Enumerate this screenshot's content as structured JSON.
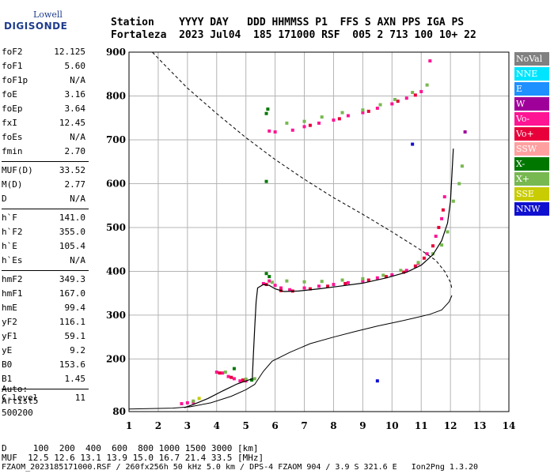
{
  "logo": {
    "top": "Lowell",
    "main": "DIGISONDE"
  },
  "header": {
    "line1": "Station    YYYY DAY   DDD HHMMSS P1  FFS S AXN PPS IGA PS",
    "line2": "Fortaleza  2023 Jul04  185 171000 RSF  005 2 713 100 10+ 22"
  },
  "params": [
    {
      "label": "foF2",
      "value": "12.125"
    },
    {
      "label": "foF1",
      "value": "5.60"
    },
    {
      "label": "foF1p",
      "value": "N/A"
    },
    {
      "label": "foE",
      "value": "3.16"
    },
    {
      "label": "foEp",
      "value": "3.64"
    },
    {
      "label": "fxI",
      "value": "12.45"
    },
    {
      "label": "foEs",
      "value": "N/A"
    },
    {
      "label": "fmin",
      "value": "2.70"
    },
    {
      "label": "MUF(D)",
      "value": "33.52"
    },
    {
      "label": "M(D)",
      "value": "2.77"
    },
    {
      "label": "D",
      "value": "N/A"
    },
    {
      "label": "h`F",
      "value": "141.0"
    },
    {
      "label": "h`F2",
      "value": "355.0"
    },
    {
      "label": "h`E",
      "value": "105.4"
    },
    {
      "label": "h`Es",
      "value": "N/A"
    },
    {
      "label": "hmF2",
      "value": "349.3"
    },
    {
      "label": "hmF1",
      "value": "167.0"
    },
    {
      "label": "hmE",
      "value": "99.4"
    },
    {
      "label": "yF2",
      "value": "116.1"
    },
    {
      "label": "yF1",
      "value": "59.1"
    },
    {
      "label": "yE",
      "value": "9.2"
    },
    {
      "label": "B0",
      "value": "153.6"
    },
    {
      "label": "B1",
      "value": "1.45"
    },
    {
      "label": "C-level",
      "value": "11"
    }
  ],
  "auto": [
    "Auto:",
    "Artist5",
    "500200"
  ],
  "legend": [
    {
      "label": "NoVal",
      "color": "#808080"
    },
    {
      "label": "NNE",
      "color": "#00e5ff"
    },
    {
      "label": "E",
      "color": "#1e90ff"
    },
    {
      "label": "W",
      "color": "#a0009a"
    },
    {
      "label": "Vo-",
      "color": "#ff1493"
    },
    {
      "label": "Vo+",
      "color": "#e8003a"
    },
    {
      "label": "SSW",
      "color": "#ffa0a0"
    },
    {
      "label": "X-",
      "color": "#007800"
    },
    {
      "label": "X+",
      "color": "#78b850"
    },
    {
      "label": "SSE",
      "color": "#c8cc00"
    },
    {
      "label": "NNW",
      "color": "#1010d0"
    }
  ],
  "footer": {
    "line1": "D     100  200  400  600  800 1000 1500 3000 [km]",
    "line2": "MUF  12.5 12.6 13.1 13.9 15.0 16.7 21.4 33.5 [MHz]",
    "line3": "FZAOM_2023185171000.RSF / 260fx256h 50 kHz 5.0 km / DPS-4 FZAOM 904 / 3.9 S 321.6 E   Ion2Png 1.3.20"
  },
  "chart_data": {
    "type": "scatter",
    "xlim": [
      1,
      14
    ],
    "ylim": [
      80,
      900
    ],
    "x_ticks": [
      1,
      2,
      3,
      4,
      5,
      6,
      7,
      8,
      9,
      10,
      11,
      12,
      13,
      14
    ],
    "y_ticks": [
      80,
      200,
      300,
      400,
      500,
      600,
      700,
      800,
      900
    ],
    "grid": true,
    "profile_curve": [
      [
        1.0,
        86
      ],
      [
        2.5,
        88
      ],
      [
        3.1,
        91
      ],
      [
        3.8,
        100
      ],
      [
        4.5,
        115
      ],
      [
        5.0,
        130
      ],
      [
        5.3,
        142
      ],
      [
        5.6,
        172
      ],
      [
        5.9,
        195
      ],
      [
        6.5,
        215
      ],
      [
        7.2,
        235
      ],
      [
        8.0,
        250
      ],
      [
        8.7,
        262
      ],
      [
        9.5,
        275
      ],
      [
        10.2,
        285
      ],
      [
        10.8,
        294
      ],
      [
        11.3,
        302
      ],
      [
        11.7,
        312
      ],
      [
        11.95,
        330
      ],
      [
        12.05,
        345
      ]
    ],
    "trace_curve": [
      [
        2.9,
        89
      ],
      [
        3.2,
        96
      ],
      [
        3.7,
        110
      ],
      [
        4.2,
        127
      ],
      [
        4.7,
        143
      ],
      [
        5.0,
        150
      ],
      [
        5.22,
        155
      ],
      [
        5.25,
        200
      ],
      [
        5.3,
        270
      ],
      [
        5.35,
        330
      ],
      [
        5.4,
        362
      ],
      [
        5.6,
        370
      ],
      [
        5.8,
        368
      ],
      [
        6.0,
        360
      ],
      [
        6.3,
        354
      ],
      [
        6.8,
        355
      ],
      [
        7.5,
        360
      ],
      [
        8.2,
        366
      ],
      [
        9.0,
        373
      ],
      [
        9.8,
        385
      ],
      [
        10.5,
        398
      ],
      [
        11.0,
        414
      ],
      [
        11.4,
        438
      ],
      [
        11.7,
        470
      ],
      [
        11.9,
        510
      ],
      [
        12.0,
        560
      ],
      [
        12.05,
        620
      ],
      [
        12.1,
        680
      ]
    ],
    "model_curve": [
      [
        1.8,
        900
      ],
      [
        2.2,
        872
      ],
      [
        3.0,
        818
      ],
      [
        4.0,
        760
      ],
      [
        5.0,
        705
      ],
      [
        6.0,
        655
      ],
      [
        7.0,
        610
      ],
      [
        8.0,
        568
      ],
      [
        9.0,
        530
      ],
      [
        10.0,
        490
      ],
      [
        11.0,
        448
      ],
      [
        11.5,
        425
      ],
      [
        11.8,
        400
      ],
      [
        12.0,
        375
      ],
      [
        12.05,
        360
      ]
    ],
    "echoes": [
      {
        "color": "#ff1493",
        "points": [
          [
            2.8,
            98
          ],
          [
            3.0,
            100
          ],
          [
            3.2,
            101
          ],
          [
            4.0,
            170
          ],
          [
            4.2,
            168
          ],
          [
            4.4,
            160
          ],
          [
            4.6,
            155
          ],
          [
            4.8,
            150
          ],
          [
            5.0,
            150
          ],
          [
            5.6,
            372
          ],
          [
            5.8,
            378
          ],
          [
            6.0,
            368
          ],
          [
            6.2,
            362
          ],
          [
            6.5,
            358
          ],
          [
            7.0,
            362
          ],
          [
            7.5,
            366
          ],
          [
            8.0,
            370
          ],
          [
            8.5,
            374
          ],
          [
            9.0,
            378
          ],
          [
            9.5,
            385
          ],
          [
            10.0,
            392
          ],
          [
            10.5,
            402
          ],
          [
            10.9,
            418
          ],
          [
            11.2,
            440
          ],
          [
            11.5,
            480
          ],
          [
            11.7,
            520
          ],
          [
            11.8,
            570
          ],
          [
            5.8,
            720
          ],
          [
            6.0,
            718
          ],
          [
            6.6,
            722
          ],
          [
            7.0,
            730
          ],
          [
            7.5,
            738
          ],
          [
            8.0,
            745
          ],
          [
            8.5,
            755
          ],
          [
            9.0,
            762
          ],
          [
            9.5,
            772
          ],
          [
            10.0,
            782
          ],
          [
            10.5,
            795
          ],
          [
            11.0,
            810
          ],
          [
            11.3,
            880
          ]
        ]
      },
      {
        "color": "#e8003a",
        "points": [
          [
            4.1,
            168
          ],
          [
            4.5,
            158
          ],
          [
            4.9,
            152
          ],
          [
            5.7,
            370
          ],
          [
            6.2,
            356
          ],
          [
            6.6,
            355
          ],
          [
            7.2,
            360
          ],
          [
            7.8,
            366
          ],
          [
            8.4,
            372
          ],
          [
            9.2,
            380
          ],
          [
            9.8,
            388
          ],
          [
            10.4,
            398
          ],
          [
            10.8,
            412
          ],
          [
            11.1,
            430
          ],
          [
            11.4,
            458
          ],
          [
            11.6,
            500
          ],
          [
            11.75,
            540
          ],
          [
            7.2,
            733
          ],
          [
            8.2,
            748
          ],
          [
            9.2,
            765
          ],
          [
            10.2,
            788
          ],
          [
            10.8,
            802
          ]
        ]
      },
      {
        "color": "#78b850",
        "points": [
          [
            3.2,
            104
          ],
          [
            4.3,
            170
          ],
          [
            5.0,
            154
          ],
          [
            5.3,
            155
          ],
          [
            5.9,
            375
          ],
          [
            6.4,
            378
          ],
          [
            7.0,
            376
          ],
          [
            7.6,
            377
          ],
          [
            8.3,
            380
          ],
          [
            9.0,
            383
          ],
          [
            9.7,
            391
          ],
          [
            10.3,
            402
          ],
          [
            10.9,
            420
          ],
          [
            11.4,
            440
          ],
          [
            11.7,
            460
          ],
          [
            11.9,
            490
          ],
          [
            12.1,
            560
          ],
          [
            12.3,
            600
          ],
          [
            12.4,
            640
          ],
          [
            6.4,
            738
          ],
          [
            7.0,
            742
          ],
          [
            7.6,
            752
          ],
          [
            8.3,
            762
          ],
          [
            9.0,
            768
          ],
          [
            9.6,
            780
          ],
          [
            10.1,
            792
          ],
          [
            10.7,
            808
          ],
          [
            11.2,
            825
          ]
        ]
      },
      {
        "color": "#007800",
        "points": [
          [
            4.6,
            178
          ],
          [
            5.2,
            152
          ],
          [
            5.7,
            395
          ],
          [
            5.8,
            388
          ],
          [
            5.75,
            770
          ],
          [
            5.7,
            760
          ],
          [
            5.7,
            605
          ]
        ]
      },
      {
        "color": "#c8cc00",
        "points": [
          [
            3.4,
            110
          ]
        ]
      },
      {
        "color": "#1010d0",
        "points": [
          [
            10.7,
            690
          ],
          [
            9.5,
            150
          ]
        ]
      },
      {
        "color": "#a0009a",
        "points": [
          [
            12.5,
            718
          ]
        ]
      }
    ]
  }
}
